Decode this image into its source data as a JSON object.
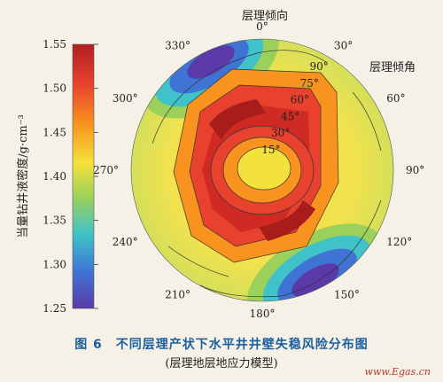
{
  "chart_data": {
    "type": "polar-contour",
    "colorbar": {
      "label": "当量钻井液密度/g·cm⁻³",
      "ticks": [
        "1.55",
        "1.50",
        "1.45",
        "1.40",
        "1.35",
        "1.30",
        "1.25"
      ],
      "range": [
        1.25,
        1.55
      ]
    },
    "azimuth_label": "层理倾向",
    "azimuth_ticks": [
      "0°",
      "30°",
      "60°",
      "90°",
      "120°",
      "150°",
      "180°",
      "210°",
      "240°",
      "270°",
      "300°",
      "330°"
    ],
    "dip_label": "层理倾角",
    "dip_ticks": [
      "15°",
      "30°",
      "45°",
      "60°",
      "75°",
      "90°"
    ]
  },
  "caption": {
    "title": "图 6　不同层理产状下水平井井壁失稳风险分布图",
    "subtitle": "(层理地层地应力模型)"
  },
  "watermark": "www.Egas.cn"
}
